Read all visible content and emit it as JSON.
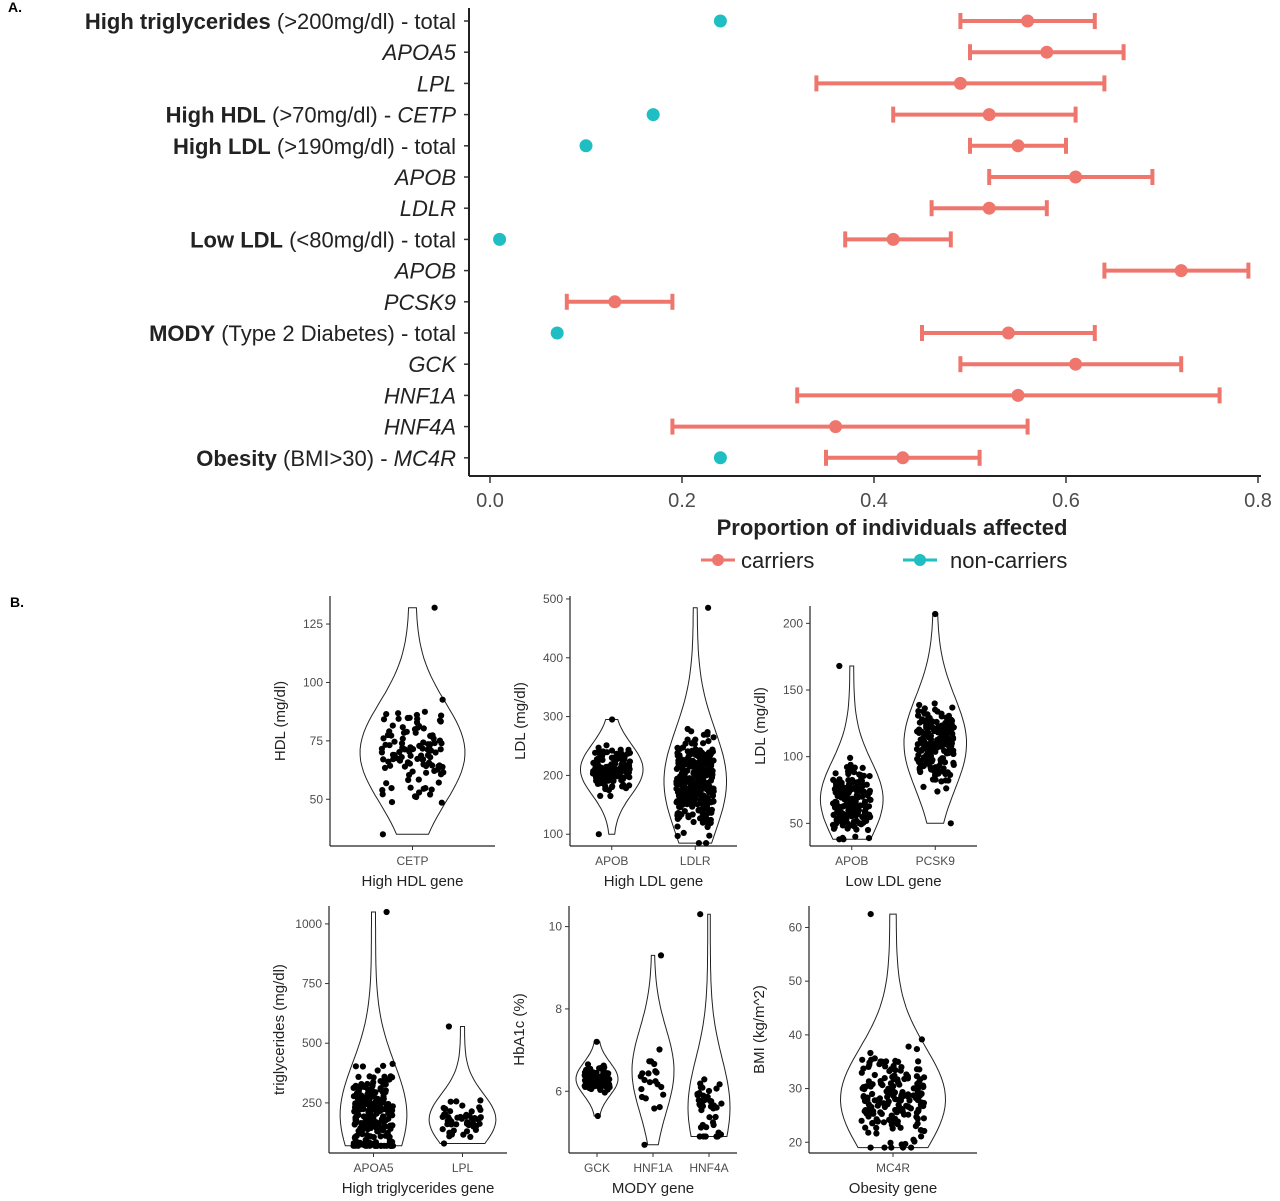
{
  "panel_a": {
    "label": "A.",
    "x_axis_title": "Proportion of individuals affected",
    "x_ticks": [
      "0.0",
      "0.2",
      "0.4",
      "0.6",
      "0.8"
    ],
    "legend": {
      "carriers": "carriers",
      "non_carriers": "non-carriers"
    },
    "colors": {
      "carriers": "#ef766d",
      "non_carriers": "#1fbec3"
    }
  },
  "panel_b": {
    "label": "B."
  },
  "chart_data": [
    {
      "type": "scatter",
      "subtype": "dot-and-errorbar",
      "x_axis": {
        "label": "Proportion of individuals affected",
        "range": [
          0.0,
          0.8
        ],
        "ticks": [
          0.0,
          0.2,
          0.4,
          0.6,
          0.8
        ]
      },
      "legend_placement": "bottom",
      "categories": [
        {
          "bold": "High triglycerides",
          "rest": " (>200mg/dl) - total",
          "italic": "",
          "carriers": {
            "est": 0.56,
            "low": 0.49,
            "high": 0.63
          },
          "non_carriers": 0.24
        },
        {
          "bold": "",
          "rest": "",
          "italic": "APOA5",
          "carriers": {
            "est": 0.58,
            "low": 0.5,
            "high": 0.66
          },
          "non_carriers": null
        },
        {
          "bold": "",
          "rest": "",
          "italic": "LPL",
          "carriers": {
            "est": 0.49,
            "low": 0.34,
            "high": 0.64
          },
          "non_carriers": null
        },
        {
          "bold": "High HDL",
          "rest": " (>70mg/dl) - ",
          "italic": "CETP",
          "carriers": {
            "est": 0.52,
            "low": 0.42,
            "high": 0.61
          },
          "non_carriers": 0.17
        },
        {
          "bold": "High LDL",
          "rest": " (>190mg/dl) - total",
          "italic": "",
          "carriers": {
            "est": 0.55,
            "low": 0.5,
            "high": 0.6
          },
          "non_carriers": 0.1
        },
        {
          "bold": "",
          "rest": "",
          "italic": "APOB",
          "carriers": {
            "est": 0.61,
            "low": 0.52,
            "high": 0.69
          },
          "non_carriers": null
        },
        {
          "bold": "",
          "rest": "",
          "italic": "LDLR",
          "carriers": {
            "est": 0.52,
            "low": 0.46,
            "high": 0.58
          },
          "non_carriers": null
        },
        {
          "bold": "Low LDL",
          "rest": " (<80mg/dl) - total",
          "italic": "",
          "carriers": {
            "est": 0.42,
            "low": 0.37,
            "high": 0.48
          },
          "non_carriers": 0.01
        },
        {
          "bold": "",
          "rest": "",
          "italic": "APOB",
          "carriers": {
            "est": 0.72,
            "low": 0.64,
            "high": 0.79
          },
          "non_carriers": null
        },
        {
          "bold": "",
          "rest": "",
          "italic": "PCSK9",
          "carriers": {
            "est": 0.13,
            "low": 0.08,
            "high": 0.19
          },
          "non_carriers": null
        },
        {
          "bold": "MODY",
          "rest": " (Type 2 Diabetes) - total",
          "italic": "",
          "carriers": {
            "est": 0.54,
            "low": 0.45,
            "high": 0.63
          },
          "non_carriers": 0.07
        },
        {
          "bold": "",
          "rest": "",
          "italic": "GCK",
          "carriers": {
            "est": 0.61,
            "low": 0.49,
            "high": 0.72
          },
          "non_carriers": null
        },
        {
          "bold": "",
          "rest": "",
          "italic": "HNF1A",
          "carriers": {
            "est": 0.55,
            "low": 0.32,
            "high": 0.76
          },
          "non_carriers": null
        },
        {
          "bold": "",
          "rest": "",
          "italic": "HNF4A",
          "carriers": {
            "est": 0.36,
            "low": 0.19,
            "high": 0.56
          },
          "non_carriers": null
        },
        {
          "bold": "Obesity",
          "rest": " (BMI>30) - ",
          "italic": "MC4R",
          "carriers": {
            "est": 0.43,
            "low": 0.35,
            "high": 0.51
          },
          "non_carriers": 0.24
        }
      ]
    },
    {
      "type": "violin",
      "xlabel": "High HDL gene",
      "ylabel": "HDL (mg/dl)",
      "ylim": [
        30,
        137
      ],
      "yticks": [
        50,
        75,
        100,
        125
      ],
      "categories": [
        "CETP"
      ],
      "groups": [
        {
          "min": 35,
          "max": 132,
          "mode": 70,
          "n": 110
        }
      ]
    },
    {
      "type": "violin",
      "xlabel": "High LDL gene",
      "ylabel": "LDL (mg/dl)",
      "ylim": [
        80,
        505
      ],
      "yticks": [
        100,
        200,
        300,
        400,
        500
      ],
      "categories": [
        "APOB",
        "LDLR"
      ],
      "groups": [
        {
          "min": 100,
          "max": 295,
          "mode": 210,
          "n": 150
        },
        {
          "min": 85,
          "max": 485,
          "mode": 190,
          "n": 320
        }
      ]
    },
    {
      "type": "violin",
      "xlabel": "Low LDL gene",
      "ylabel": "LDL (mg/dl)",
      "ylim": [
        33,
        213
      ],
      "yticks": [
        50,
        100,
        150,
        200
      ],
      "categories": [
        "APOB",
        "PCSK9"
      ],
      "groups": [
        {
          "min": 38,
          "max": 168,
          "mode": 68,
          "n": 170
        },
        {
          "min": 50,
          "max": 207,
          "mode": 110,
          "n": 190
        }
      ]
    },
    {
      "type": "violin",
      "xlabel": "High triglycerides gene",
      "ylabel": "triglycerides (mg/dl)",
      "ylim": [
        40,
        1075
      ],
      "yticks": [
        250,
        500,
        750,
        1000
      ],
      "categories": [
        "APOA5",
        "LPL"
      ],
      "groups": [
        {
          "min": 70,
          "max": 1050,
          "mode": 200,
          "n": 230
        },
        {
          "min": 80,
          "max": 570,
          "mode": 180,
          "n": 50
        }
      ]
    },
    {
      "type": "violin",
      "xlabel": "MODY gene",
      "ylabel": "HbA1c (%)",
      "ylim": [
        4.5,
        10.5
      ],
      "yticks": [
        6,
        8,
        10
      ],
      "categories": [
        "GCK",
        "HNF1A",
        "HNF4A"
      ],
      "groups": [
        {
          "min": 5.4,
          "max": 7.2,
          "mode": 6.3,
          "n": 110
        },
        {
          "min": 4.7,
          "max": 9.3,
          "mode": 6.5,
          "n": 22
        },
        {
          "min": 4.9,
          "max": 10.3,
          "mode": 5.6,
          "n": 45
        }
      ]
    },
    {
      "type": "violin",
      "xlabel": "Obesity gene",
      "ylabel": "BMI (kg/m^2)",
      "ylim": [
        18,
        64
      ],
      "yticks": [
        20,
        30,
        40,
        50,
        60
      ],
      "categories": [
        "MC4R"
      ],
      "groups": [
        {
          "min": 19,
          "max": 62.5,
          "mode": 28,
          "n": 190
        }
      ]
    }
  ]
}
